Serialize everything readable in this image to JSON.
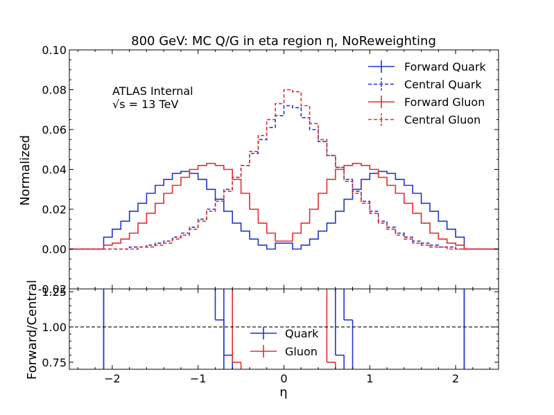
{
  "chart_data": {
    "type": "line",
    "title": "800 GeV: MC Q/G in eta region η, NoReweighting",
    "annotation": {
      "line1": "ATLAS Internal",
      "line2": "√s = 13 TeV"
    },
    "bin_edges": [
      -2.5,
      -2.4,
      -2.3,
      -2.2,
      -2.1,
      -2.0,
      -1.9,
      -1.8,
      -1.7,
      -1.6,
      -1.5,
      -1.4,
      -1.3,
      -1.2,
      -1.1,
      -1.0,
      -0.9,
      -0.8,
      -0.7,
      -0.6,
      -0.5,
      -0.4,
      -0.3,
      -0.2,
      -0.1,
      0.0,
      0.1,
      0.2,
      0.3,
      0.4,
      0.5,
      0.6,
      0.7,
      0.8,
      0.9,
      1.0,
      1.1,
      1.2,
      1.3,
      1.4,
      1.5,
      1.6,
      1.7,
      1.8,
      1.9,
      2.0,
      2.1,
      2.2,
      2.3,
      2.4,
      2.5
    ],
    "top_panel": {
      "ylabel": "Normalized",
      "ylim": [
        -0.02,
        0.1
      ],
      "yticks": [
        "-0.02",
        "0.00",
        "0.02",
        "0.04",
        "0.06",
        "0.08",
        "0.10"
      ],
      "legend_position": "top-right",
      "series": [
        {
          "name": "Forward Quark",
          "color": "#1f35cc",
          "style": "solid",
          "values": [
            0,
            0,
            0,
            0,
            0.006,
            0.01,
            0.014,
            0.019,
            0.023,
            0.028,
            0.032,
            0.035,
            0.038,
            0.039,
            0.038,
            0.035,
            0.03,
            0.025,
            0.019,
            0.013,
            0.009,
            0.005,
            0.002,
            0,
            0.003,
            0.003,
            0,
            0.002,
            0.005,
            0.009,
            0.013,
            0.019,
            0.025,
            0.03,
            0.035,
            0.038,
            0.039,
            0.038,
            0.035,
            0.032,
            0.028,
            0.023,
            0.019,
            0.014,
            0.01,
            0.006,
            0,
            0,
            0,
            0
          ]
        },
        {
          "name": "Central Quark",
          "color": "#1f35cc",
          "style": "dashed",
          "values": [
            0,
            0,
            0,
            0,
            0,
            0,
            0,
            0.001,
            0.001,
            0.002,
            0.003,
            0.004,
            0.006,
            0.008,
            0.011,
            0.015,
            0.02,
            0.025,
            0.03,
            0.036,
            0.042,
            0.048,
            0.055,
            0.061,
            0.067,
            0.072,
            0.071,
            0.066,
            0.06,
            0.054,
            0.047,
            0.041,
            0.035,
            0.029,
            0.024,
            0.019,
            0.014,
            0.011,
            0.008,
            0.006,
            0.004,
            0.003,
            0.002,
            0.001,
            0.001,
            0,
            0,
            0,
            0,
            0
          ]
        },
        {
          "name": "Forward Gluon",
          "color": "#e52b2b",
          "style": "solid",
          "values": [
            0,
            0,
            0,
            0,
            0.002,
            0.003,
            0.005,
            0.008,
            0.013,
            0.018,
            0.023,
            0.028,
            0.032,
            0.036,
            0.04,
            0.042,
            0.043,
            0.042,
            0.04,
            0.035,
            0.028,
            0.02,
            0.013,
            0.008,
            0.004,
            0.004,
            0.008,
            0.013,
            0.02,
            0.028,
            0.035,
            0.04,
            0.042,
            0.043,
            0.042,
            0.04,
            0.036,
            0.032,
            0.028,
            0.023,
            0.018,
            0.013,
            0.008,
            0.005,
            0.003,
            0.002,
            0,
            0,
            0,
            0
          ]
        },
        {
          "name": "Central Gluon",
          "color": "#e52b2b",
          "style": "dashed",
          "values": [
            0,
            0,
            0,
            0,
            0,
            0,
            0,
            0,
            0.001,
            0.001,
            0.002,
            0.003,
            0.005,
            0.007,
            0.01,
            0.014,
            0.019,
            0.024,
            0.029,
            0.036,
            0.042,
            0.049,
            0.057,
            0.065,
            0.073,
            0.08,
            0.079,
            0.072,
            0.063,
            0.055,
            0.047,
            0.041,
            0.034,
            0.028,
            0.023,
            0.018,
            0.013,
            0.01,
            0.007,
            0.005,
            0.003,
            0.002,
            0.001,
            0.001,
            0,
            0,
            0,
            0,
            0,
            0
          ]
        }
      ]
    },
    "bottom_panel": {
      "ylabel": "Forward/Central",
      "xlabel": "η",
      "ylim": [
        0.7,
        1.27
      ],
      "yticks": [
        "0.75",
        "1.00",
        "1.25"
      ],
      "xticks": [
        "−2",
        "−1",
        "0",
        "1",
        "2"
      ],
      "xlim": [
        -2.5,
        2.5
      ],
      "reference_line": 1.0,
      "legend_position": "bottom-center",
      "series": [
        {
          "name": "Quark",
          "color": "#1f35cc",
          "points": [
            {
              "x_lo": -2.1,
              "x_hi": -2.1,
              "y": 1.27
            },
            {
              "x_lo": -0.8,
              "x_hi": -0.7,
              "y": 1.05
            },
            {
              "x_lo": -0.7,
              "x_hi": -0.6,
              "y": 0.8
            },
            {
              "x_lo": 0.6,
              "x_hi": 0.7,
              "y": 0.8
            },
            {
              "x_lo": 0.7,
              "x_hi": 0.8,
              "y": 1.05
            },
            {
              "x_lo": 2.1,
              "x_hi": 2.1,
              "y": 1.27
            }
          ]
        },
        {
          "name": "Gluon",
          "color": "#e52b2b",
          "points": [
            {
              "x_lo": -0.6,
              "x_hi": -0.5,
              "y": 0.75
            },
            {
              "x_lo": 0.5,
              "x_hi": 0.6,
              "y": 0.75
            }
          ]
        }
      ]
    }
  }
}
